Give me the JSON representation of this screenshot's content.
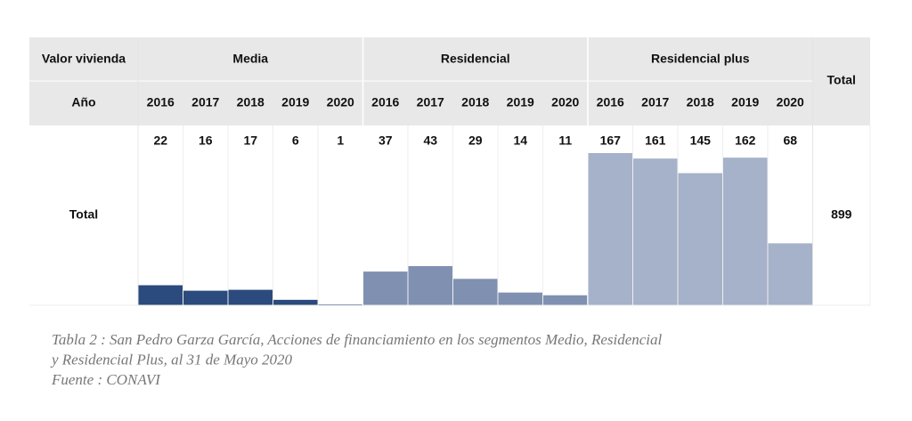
{
  "chart_data": {
    "type": "bar",
    "header": {
      "label": "Valor vivienda",
      "year_label": "Año",
      "total_label": "Total"
    },
    "row_label": "Total",
    "categories": [
      "2016",
      "2017",
      "2018",
      "2019",
      "2020"
    ],
    "series": [
      {
        "name": "Media",
        "color": "#2b4a7d",
        "values": [
          22,
          16,
          17,
          6,
          1
        ]
      },
      {
        "name": "Residencial",
        "color": "#8090b1",
        "values": [
          37,
          43,
          29,
          14,
          11
        ]
      },
      {
        "name": "Residencial plus",
        "color": "#a6b2c9",
        "values": [
          167,
          161,
          145,
          162,
          68
        ]
      }
    ],
    "total": 899,
    "caption": [
      "Tabla 2 : San Pedro Garza García, Acciones de financiamiento en los segmentos Medio, Residencial",
      "y Residencial Plus, al 31 de Mayo 2020",
      "Fuente : CONAVI"
    ]
  }
}
